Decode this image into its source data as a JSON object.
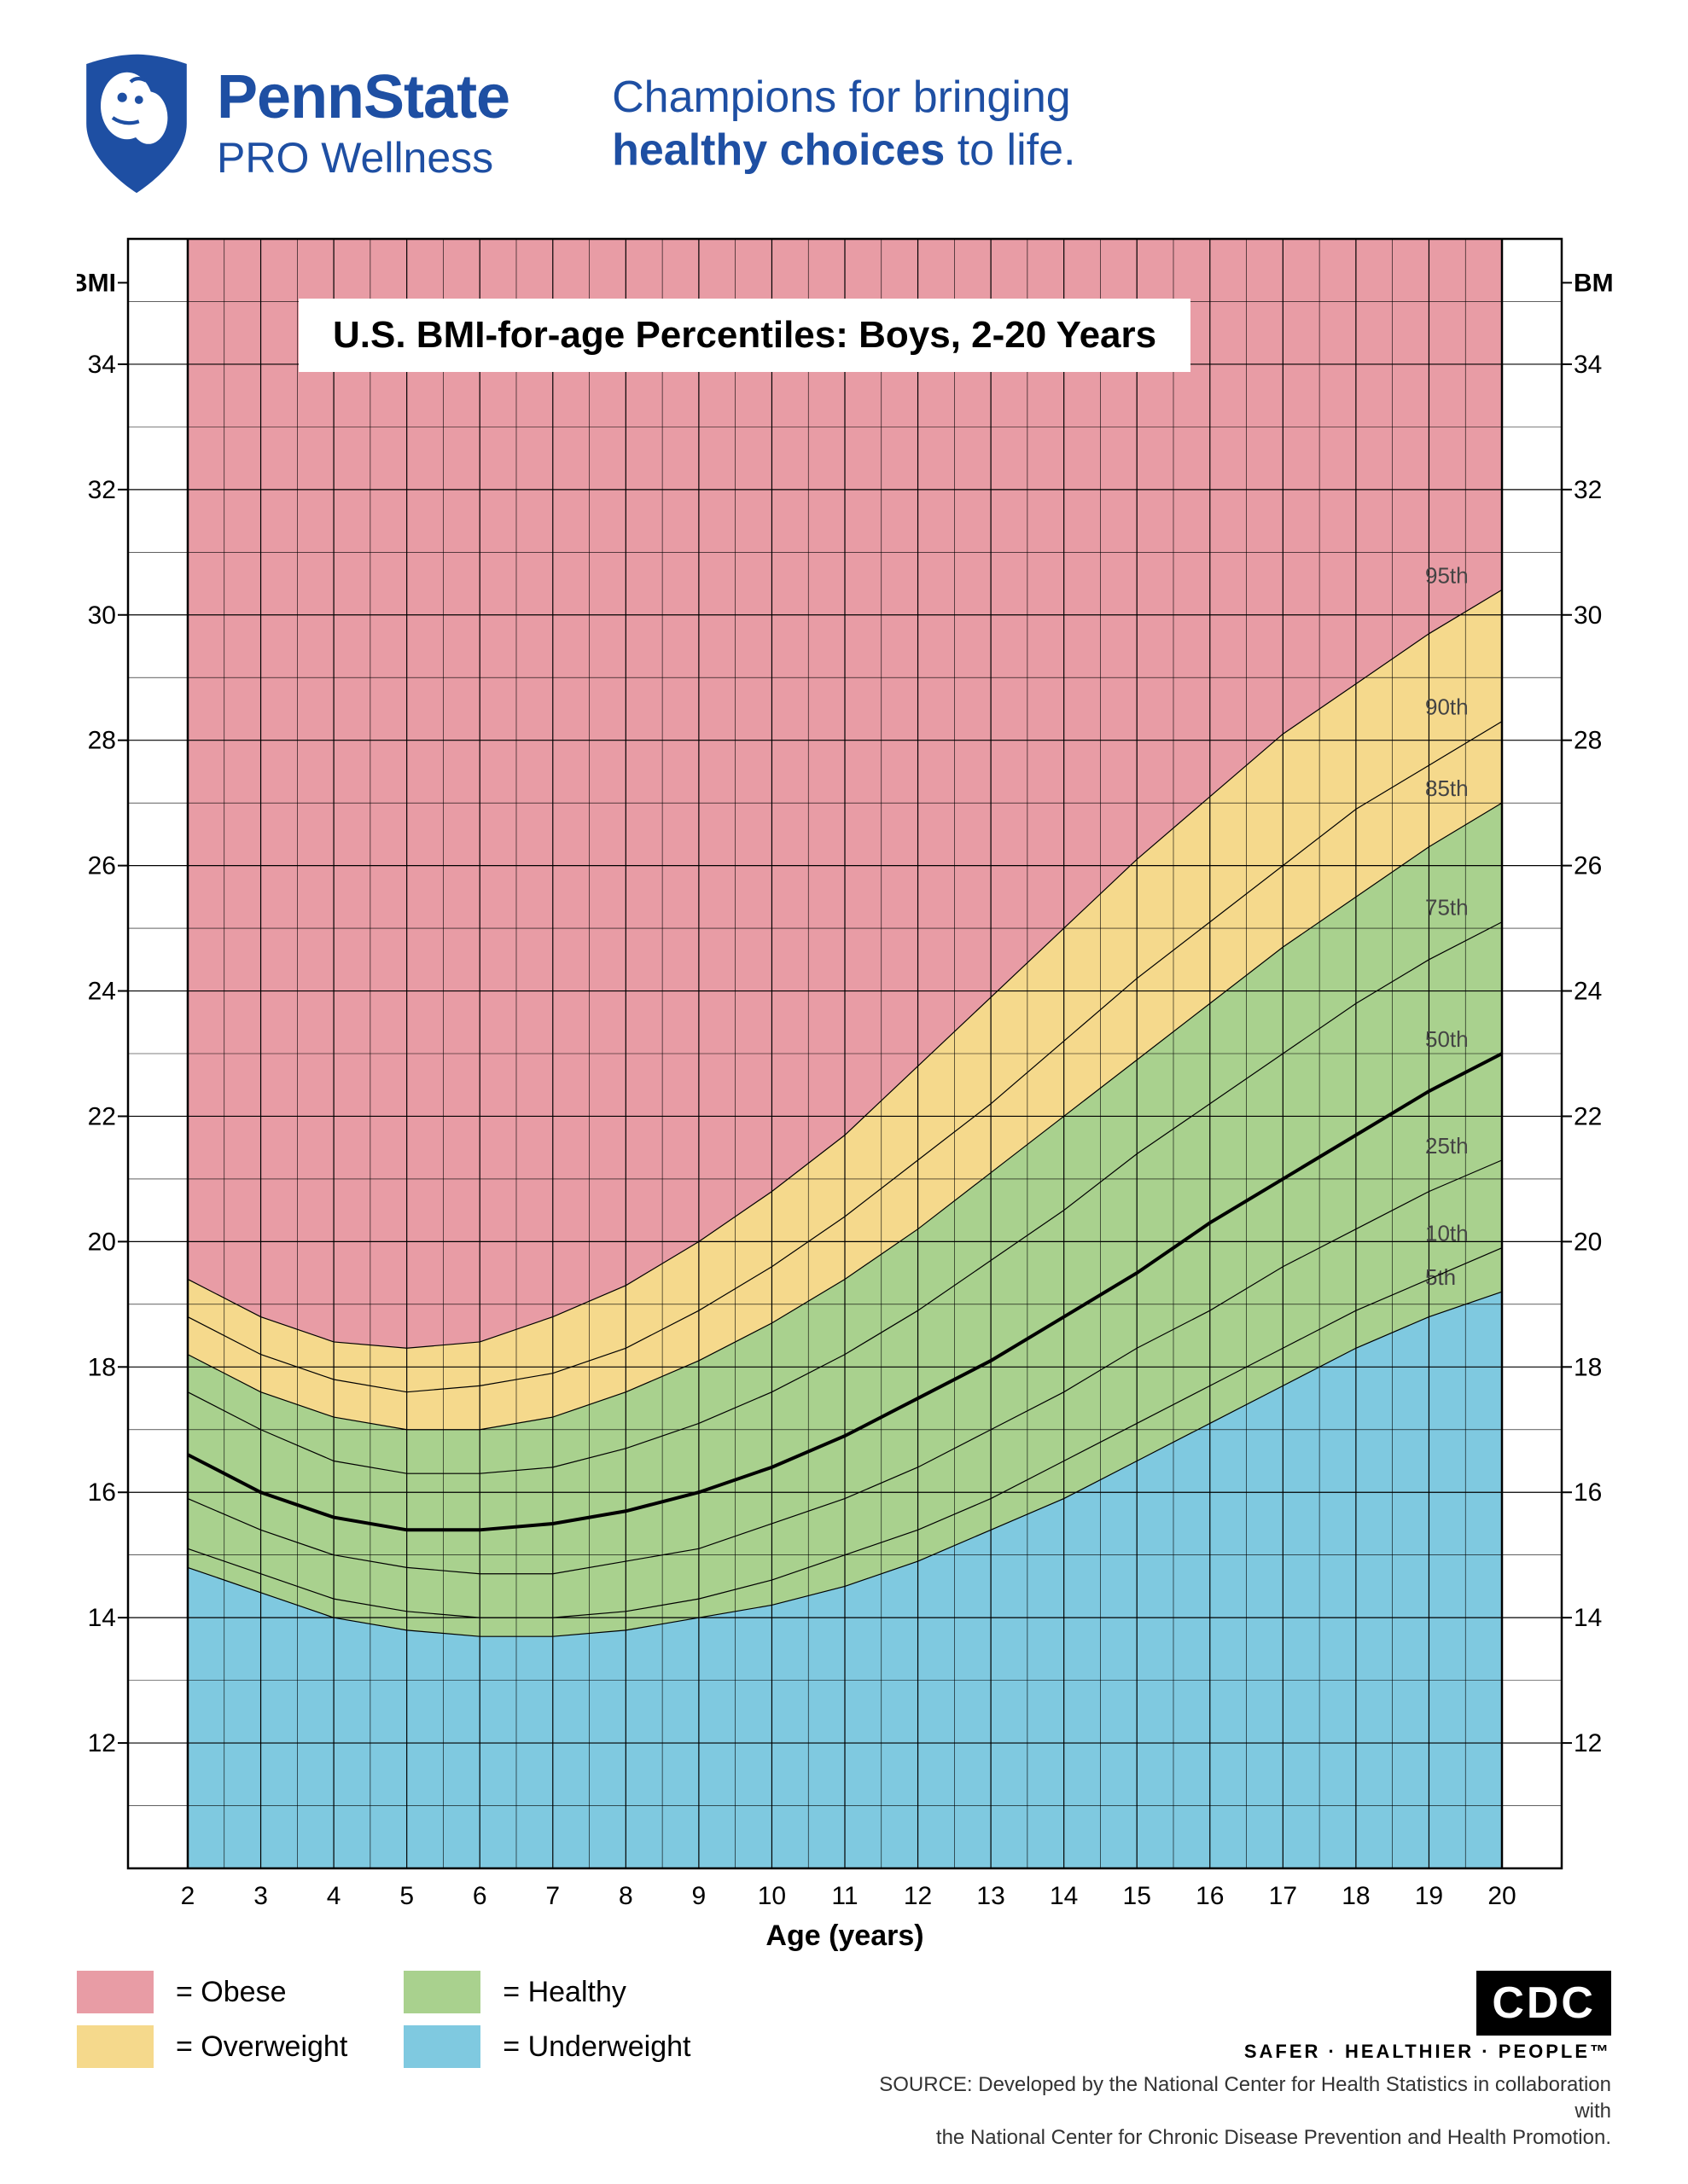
{
  "header": {
    "logo_line1": "PennState",
    "logo_line2": "PRO Wellness",
    "logo_color": "#1e4fa3",
    "tagline_part1": "Champions for bringing",
    "tagline_bold": "healthy choices",
    "tagline_part2": " to life."
  },
  "chart": {
    "title": "U.S. BMI-for-age Percentiles: Boys, 2-20 Years",
    "xlabel": "Age (years)",
    "y_corner_label": "BMI",
    "xlim": [
      2,
      20
    ],
    "ylim": [
      10,
      36
    ],
    "x_ticks": [
      2,
      3,
      4,
      5,
      6,
      7,
      8,
      9,
      10,
      11,
      12,
      13,
      14,
      15,
      16,
      17,
      18,
      19,
      20
    ],
    "y_ticks": [
      12,
      14,
      16,
      18,
      20,
      22,
      24,
      26,
      28,
      30,
      32,
      34
    ],
    "x_minor_per_major": 2,
    "y_minor_per_major": 2,
    "grid_color": "#000000",
    "grid_major_width": 1.2,
    "grid_minor_width": 0.6,
    "plot_border_width": 2.5,
    "background_color": "#ffffff",
    "regions": {
      "obese": {
        "color": "#e89ca5"
      },
      "overweight": {
        "color": "#f5d98c"
      },
      "healthy": {
        "color": "#a9d18e"
      },
      "underweight": {
        "color": "#7fc9e0"
      }
    },
    "percentiles": [
      {
        "label": "5th",
        "width": 1.2,
        "values": [
          14.8,
          14.4,
          14.0,
          13.8,
          13.7,
          13.7,
          13.8,
          14.0,
          14.2,
          14.5,
          14.9,
          15.4,
          15.9,
          16.5,
          17.1,
          17.7,
          18.3,
          18.8,
          19.2
        ]
      },
      {
        "label": "10th",
        "width": 1.2,
        "values": [
          15.1,
          14.7,
          14.3,
          14.1,
          14.0,
          14.0,
          14.1,
          14.3,
          14.6,
          15.0,
          15.4,
          15.9,
          16.5,
          17.1,
          17.7,
          18.3,
          18.9,
          19.4,
          19.9
        ]
      },
      {
        "label": "25th",
        "width": 1.2,
        "values": [
          15.9,
          15.4,
          15.0,
          14.8,
          14.7,
          14.7,
          14.9,
          15.1,
          15.5,
          15.9,
          16.4,
          17.0,
          17.6,
          18.3,
          18.9,
          19.6,
          20.2,
          20.8,
          21.3
        ]
      },
      {
        "label": "50th",
        "width": 4.0,
        "values": [
          16.6,
          16.0,
          15.6,
          15.4,
          15.4,
          15.5,
          15.7,
          16.0,
          16.4,
          16.9,
          17.5,
          18.1,
          18.8,
          19.5,
          20.3,
          21.0,
          21.7,
          22.4,
          23.0
        ]
      },
      {
        "label": "75th",
        "width": 1.2,
        "values": [
          17.6,
          17.0,
          16.5,
          16.3,
          16.3,
          16.4,
          16.7,
          17.1,
          17.6,
          18.2,
          18.9,
          19.7,
          20.5,
          21.4,
          22.2,
          23.0,
          23.8,
          24.5,
          25.1
        ]
      },
      {
        "label": "85th",
        "width": 1.2,
        "values": [
          18.2,
          17.6,
          17.2,
          17.0,
          17.0,
          17.2,
          17.6,
          18.1,
          18.7,
          19.4,
          20.2,
          21.1,
          22.0,
          22.9,
          23.8,
          24.7,
          25.5,
          26.3,
          27.0
        ]
      },
      {
        "label": "90th",
        "width": 1.2,
        "values": [
          18.8,
          18.2,
          17.8,
          17.6,
          17.7,
          17.9,
          18.3,
          18.9,
          19.6,
          20.4,
          21.3,
          22.2,
          23.2,
          24.2,
          25.1,
          26.0,
          26.9,
          27.6,
          28.3
        ]
      },
      {
        "label": "95th",
        "width": 1.2,
        "values": [
          19.4,
          18.8,
          18.4,
          18.3,
          18.4,
          18.8,
          19.3,
          20.0,
          20.8,
          21.7,
          22.8,
          23.9,
          25.0,
          26.1,
          27.1,
          28.1,
          28.9,
          29.7,
          30.4
        ]
      }
    ],
    "line_color": "#000000",
    "label_fontsize": 34,
    "tick_fontsize": 30,
    "pct_label_fontsize": 26
  },
  "legend": {
    "items": [
      {
        "key": "obese",
        "label": "= Obese"
      },
      {
        "key": "overweight",
        "label": "= Overweight"
      },
      {
        "key": "healthy",
        "label": "= Healthy"
      },
      {
        "key": "underweight",
        "label": "= Underweight"
      }
    ]
  },
  "source": {
    "cdc_label": "CDC",
    "cdc_tagline": "SAFER · HEALTHIER · PEOPLE™",
    "text_line1": "SOURCE: Developed by the National Center for Health Statistics in collaboration with",
    "text_line2": "the National Center for Chronic Disease Prevention and Health Promotion."
  }
}
